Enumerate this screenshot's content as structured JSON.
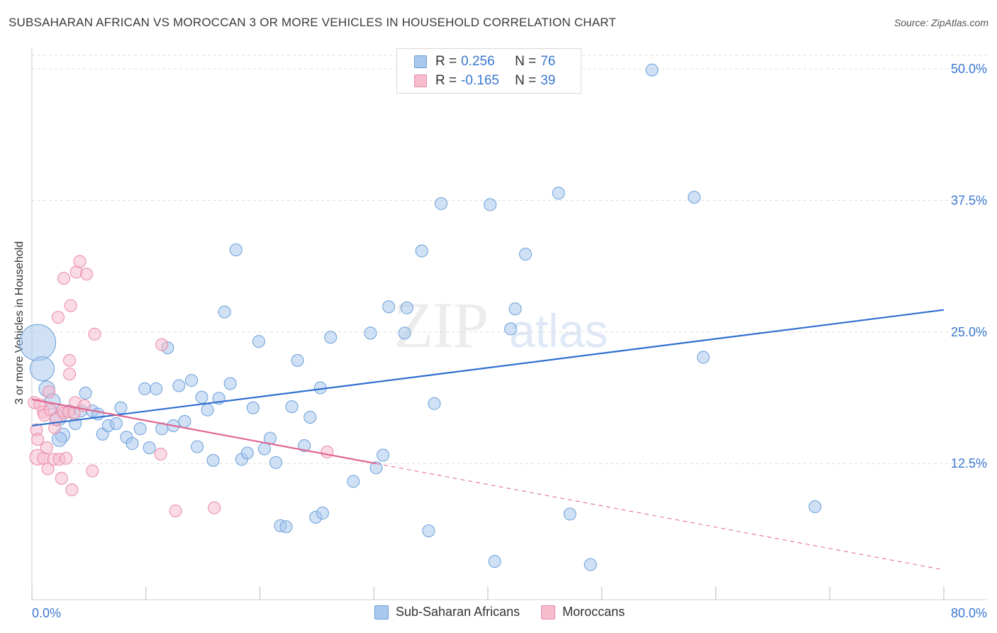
{
  "title": "SUBSAHARAN AFRICAN VS MOROCCAN 3 OR MORE VEHICLES IN HOUSEHOLD CORRELATION CHART",
  "source": "Source: ZipAtlas.com",
  "watermark": {
    "zip": "ZIP",
    "atlas": "atlas"
  },
  "legend": {
    "rows": [
      {
        "r_label": "R =",
        "r_value": "0.256",
        "n_label": "N =",
        "n_value": "76"
      },
      {
        "r_label": "R =",
        "r_value": "-0.165",
        "n_label": "N =",
        "n_value": "39"
      }
    ]
  },
  "bottom_legend": {
    "series1": "Sub-Saharan Africans",
    "series2": "Moroccans"
  },
  "colors": {
    "blue_fill": "#a9c8ee",
    "blue_stroke": "#6a9fd8",
    "blue_line": "#2f6fd0",
    "pink_fill": "#f6bccd",
    "pink_stroke": "#e88aa6",
    "pink_line": "#e06690",
    "grid": "#dddddd",
    "tick_text": "#3b78d0"
  },
  "chart_data": {
    "type": "scatter",
    "title": "SUBSAHARAN AFRICAN VS MOROCCAN 3 OR MORE VEHICLES IN HOUSEHOLD CORRELATION CHART",
    "xlabel": "",
    "ylabel": "3 or more Vehicles in Household",
    "xlim": [
      0,
      80
    ],
    "ylim": [
      0,
      51.2
    ],
    "x_tick_labels": [
      "0.0%",
      "80.0%"
    ],
    "y_ticks": [
      12.5,
      25.0,
      37.5,
      50.0
    ],
    "y_tick_labels": [
      "12.5%",
      "25.0%",
      "37.5%",
      "50.0%"
    ],
    "series": [
      {
        "name": "Sub-Saharan Africans",
        "trend": {
          "x": [
            0,
            80
          ],
          "y": [
            16.1,
            27.1
          ],
          "style": "solid"
        },
        "points": [
          {
            "x": 0.5,
            "y": 24.0,
            "s": 3
          },
          {
            "x": 0.9,
            "y": 21.5,
            "s": 2
          },
          {
            "x": 1.3,
            "y": 19.6,
            "s": 1.3
          },
          {
            "x": 1.8,
            "y": 18.4,
            "s": 1.3
          },
          {
            "x": 2.3,
            "y": 16.8,
            "s": 1.3
          },
          {
            "x": 2.7,
            "y": 15.2,
            "s": 1.2
          },
          {
            "x": 2.4,
            "y": 14.8,
            "s": 1.2
          },
          {
            "x": 3.3,
            "y": 17.5,
            "s": 1
          },
          {
            "x": 3.8,
            "y": 16.3,
            "s": 1
          },
          {
            "x": 4.3,
            "y": 17.5,
            "s": 1
          },
          {
            "x": 4.7,
            "y": 19.2,
            "s": 1
          },
          {
            "x": 5.3,
            "y": 17.5,
            "s": 1
          },
          {
            "x": 5.8,
            "y": 17.2,
            "s": 1
          },
          {
            "x": 6.2,
            "y": 15.3,
            "s": 1
          },
          {
            "x": 6.7,
            "y": 16.1,
            "s": 1
          },
          {
            "x": 7.4,
            "y": 16.3,
            "s": 1
          },
          {
            "x": 7.8,
            "y": 17.8,
            "s": 1
          },
          {
            "x": 8.3,
            "y": 15.0,
            "s": 1
          },
          {
            "x": 8.8,
            "y": 14.4,
            "s": 1
          },
          {
            "x": 9.5,
            "y": 15.8,
            "s": 1
          },
          {
            "x": 9.9,
            "y": 19.6,
            "s": 1
          },
          {
            "x": 10.3,
            "y": 14.0,
            "s": 1
          },
          {
            "x": 10.9,
            "y": 19.6,
            "s": 1
          },
          {
            "x": 11.4,
            "y": 15.8,
            "s": 1
          },
          {
            "x": 11.9,
            "y": 23.5,
            "s": 1
          },
          {
            "x": 12.4,
            "y": 16.1,
            "s": 1
          },
          {
            "x": 12.9,
            "y": 19.9,
            "s": 1
          },
          {
            "x": 13.4,
            "y": 16.5,
            "s": 1
          },
          {
            "x": 14.0,
            "y": 20.4,
            "s": 1
          },
          {
            "x": 14.5,
            "y": 14.1,
            "s": 1
          },
          {
            "x": 14.9,
            "y": 18.8,
            "s": 1
          },
          {
            "x": 15.4,
            "y": 17.6,
            "s": 1
          },
          {
            "x": 15.9,
            "y": 12.8,
            "s": 1
          },
          {
            "x": 16.4,
            "y": 18.7,
            "s": 1
          },
          {
            "x": 16.9,
            "y": 26.9,
            "s": 1
          },
          {
            "x": 17.4,
            "y": 20.1,
            "s": 1
          },
          {
            "x": 17.9,
            "y": 32.8,
            "s": 1
          },
          {
            "x": 18.4,
            "y": 12.9,
            "s": 1
          },
          {
            "x": 18.9,
            "y": 13.5,
            "s": 1
          },
          {
            "x": 19.4,
            "y": 17.8,
            "s": 1
          },
          {
            "x": 19.9,
            "y": 24.1,
            "s": 1
          },
          {
            "x": 20.4,
            "y": 13.9,
            "s": 1
          },
          {
            "x": 20.9,
            "y": 14.9,
            "s": 1
          },
          {
            "x": 21.4,
            "y": 12.6,
            "s": 1
          },
          {
            "x": 21.8,
            "y": 6.6,
            "s": 1
          },
          {
            "x": 22.3,
            "y": 6.5,
            "s": 1
          },
          {
            "x": 22.8,
            "y": 17.9,
            "s": 1
          },
          {
            "x": 23.3,
            "y": 22.3,
            "s": 1
          },
          {
            "x": 23.9,
            "y": 14.2,
            "s": 1
          },
          {
            "x": 24.4,
            "y": 16.9,
            "s": 1
          },
          {
            "x": 24.9,
            "y": 7.4,
            "s": 1
          },
          {
            "x": 25.3,
            "y": 19.7,
            "s": 1
          },
          {
            "x": 25.5,
            "y": 7.8,
            "s": 1
          },
          {
            "x": 26.2,
            "y": 24.5,
            "s": 1
          },
          {
            "x": 28.2,
            "y": 10.8,
            "s": 1
          },
          {
            "x": 29.7,
            "y": 24.9,
            "s": 1
          },
          {
            "x": 30.2,
            "y": 12.1,
            "s": 1
          },
          {
            "x": 30.8,
            "y": 13.3,
            "s": 1
          },
          {
            "x": 31.3,
            "y": 27.4,
            "s": 1
          },
          {
            "x": 32.7,
            "y": 24.9,
            "s": 1
          },
          {
            "x": 32.9,
            "y": 27.3,
            "s": 1
          },
          {
            "x": 34.2,
            "y": 32.7,
            "s": 1
          },
          {
            "x": 34.8,
            "y": 6.1,
            "s": 1
          },
          {
            "x": 35.3,
            "y": 18.2,
            "s": 1
          },
          {
            "x": 35.9,
            "y": 37.2,
            "s": 1
          },
          {
            "x": 40.2,
            "y": 37.1,
            "s": 1
          },
          {
            "x": 40.6,
            "y": 3.2,
            "s": 1
          },
          {
            "x": 42.0,
            "y": 25.3,
            "s": 1
          },
          {
            "x": 42.4,
            "y": 27.2,
            "s": 1
          },
          {
            "x": 43.3,
            "y": 32.4,
            "s": 1
          },
          {
            "x": 46.2,
            "y": 38.2,
            "s": 1
          },
          {
            "x": 47.2,
            "y": 7.7,
            "s": 1
          },
          {
            "x": 49.0,
            "y": 2.9,
            "s": 1
          },
          {
            "x": 54.4,
            "y": 49.9,
            "s": 1
          },
          {
            "x": 58.1,
            "y": 37.8,
            "s": 1
          },
          {
            "x": 58.9,
            "y": 22.6,
            "s": 1
          },
          {
            "x": 68.7,
            "y": 8.4,
            "s": 1
          }
        ]
      },
      {
        "name": "Moroccans",
        "trend": {
          "x": [
            0,
            30.2,
            80
          ],
          "y": [
            18.6,
            12.5,
            2.4
          ],
          "style": "solid-then-dashed"
        },
        "points": [
          {
            "x": 0.2,
            "y": 18.3,
            "s": 1
          },
          {
            "x": 0.4,
            "y": 15.7,
            "s": 1
          },
          {
            "x": 0.5,
            "y": 14.8,
            "s": 1
          },
          {
            "x": 0.5,
            "y": 13.1,
            "s": 1.3
          },
          {
            "x": 0.7,
            "y": 18.1,
            "s": 1
          },
          {
            "x": 1.0,
            "y": 13.0,
            "s": 1
          },
          {
            "x": 1.0,
            "y": 17.4,
            "s": 1
          },
          {
            "x": 1.1,
            "y": 17.1,
            "s": 1
          },
          {
            "x": 1.3,
            "y": 14.0,
            "s": 1
          },
          {
            "x": 1.4,
            "y": 12.0,
            "s": 1
          },
          {
            "x": 1.5,
            "y": 19.3,
            "s": 1
          },
          {
            "x": 1.6,
            "y": 17.6,
            "s": 1
          },
          {
            "x": 1.9,
            "y": 12.9,
            "s": 1
          },
          {
            "x": 2.0,
            "y": 15.9,
            "s": 1
          },
          {
            "x": 2.1,
            "y": 16.7,
            "s": 1
          },
          {
            "x": 2.3,
            "y": 26.4,
            "s": 1
          },
          {
            "x": 2.4,
            "y": 12.9,
            "s": 1
          },
          {
            "x": 2.6,
            "y": 11.1,
            "s": 1
          },
          {
            "x": 2.7,
            "y": 17.5,
            "s": 1
          },
          {
            "x": 2.8,
            "y": 17.3,
            "s": 1
          },
          {
            "x": 2.8,
            "y": 30.1,
            "s": 1
          },
          {
            "x": 3.0,
            "y": 13.0,
            "s": 1
          },
          {
            "x": 3.2,
            "y": 17.4,
            "s": 1
          },
          {
            "x": 3.3,
            "y": 22.3,
            "s": 1
          },
          {
            "x": 3.3,
            "y": 21.0,
            "s": 1
          },
          {
            "x": 3.4,
            "y": 27.5,
            "s": 1
          },
          {
            "x": 3.5,
            "y": 10.0,
            "s": 1
          },
          {
            "x": 3.7,
            "y": 17.3,
            "s": 1
          },
          {
            "x": 3.8,
            "y": 18.3,
            "s": 1
          },
          {
            "x": 3.9,
            "y": 30.7,
            "s": 1
          },
          {
            "x": 4.2,
            "y": 31.7,
            "s": 1
          },
          {
            "x": 4.6,
            "y": 18.0,
            "s": 1
          },
          {
            "x": 4.8,
            "y": 30.5,
            "s": 1
          },
          {
            "x": 5.3,
            "y": 11.8,
            "s": 1
          },
          {
            "x": 5.5,
            "y": 24.8,
            "s": 1
          },
          {
            "x": 11.3,
            "y": 13.4,
            "s": 1
          },
          {
            "x": 11.4,
            "y": 23.8,
            "s": 1
          },
          {
            "x": 12.6,
            "y": 8.0,
            "s": 1
          },
          {
            "x": 16.0,
            "y": 8.3,
            "s": 1
          },
          {
            "x": 25.9,
            "y": 13.6,
            "s": 1
          }
        ]
      }
    ]
  }
}
